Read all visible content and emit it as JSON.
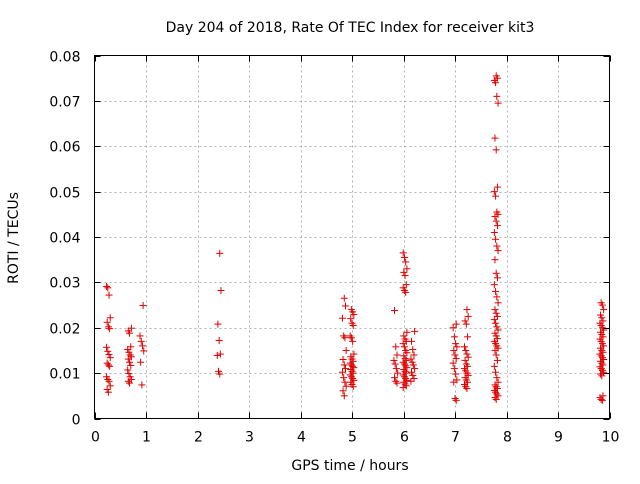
{
  "chart_data": {
    "type": "scatter",
    "title": "Day 204 of 2018, Rate Of TEC Index for receiver kit3",
    "xlabel": "GPS time / hours",
    "ylabel": "ROTI / TECUs",
    "xlim": [
      0,
      10
    ],
    "ylim": [
      0,
      0.08
    ],
    "x_ticks": [
      0,
      1,
      2,
      3,
      4,
      5,
      6,
      7,
      8,
      9,
      10
    ],
    "x_tick_labels": [
      "0",
      "1",
      "2",
      "3",
      "4",
      "5",
      "6",
      "7",
      "8",
      "9",
      "10"
    ],
    "y_ticks": [
      0,
      0.01,
      0.02,
      0.03,
      0.04,
      0.05,
      0.06,
      0.07,
      0.08
    ],
    "y_tick_labels": [
      "0",
      "0.01",
      "0.02",
      "0.03",
      "0.04",
      "0.05",
      "0.06",
      "0.07",
      "0.08"
    ],
    "grid": true,
    "marker": "+",
    "marker_color": "#e00000",
    "clusters": [
      {
        "x": 0.27,
        "values": [
          0.0291,
          0.0288,
          0.0272,
          0.0222,
          0.0212,
          0.0202,
          0.0198,
          0.0157,
          0.0148,
          0.0141,
          0.0134,
          0.0122,
          0.0118,
          0.0115,
          0.0092,
          0.0086,
          0.0082,
          0.0072,
          0.0064,
          0.0058
        ]
      },
      {
        "x": 0.68,
        "values": [
          0.0199,
          0.0193,
          0.0188,
          0.0158,
          0.0152,
          0.0146,
          0.014,
          0.0136,
          0.0131,
          0.0124,
          0.0117,
          0.0107,
          0.0099,
          0.0092,
          0.0086,
          0.0082,
          0.0078
        ]
      },
      {
        "x": 0.92,
        "values": [
          0.0249,
          0.0182,
          0.017,
          0.016,
          0.0149,
          0.0124,
          0.0074
        ]
      },
      {
        "x": 2.42,
        "values": [
          0.0364,
          0.0282,
          0.0208,
          0.0172,
          0.0142,
          0.0139,
          0.0104,
          0.0098
        ]
      },
      {
        "x": 4.85,
        "values": [
          0.0265,
          0.0248,
          0.0221,
          0.0182,
          0.0178,
          0.015,
          0.013,
          0.0118,
          0.011,
          0.0102,
          0.009,
          0.008,
          0.0071,
          0.0061,
          0.005
        ]
      },
      {
        "x": 5.0,
        "values": [
          0.024,
          0.0235,
          0.0229,
          0.022,
          0.021,
          0.0205,
          0.0182,
          0.0178,
          0.017,
          0.0142,
          0.0136,
          0.0131,
          0.0126,
          0.0122,
          0.0118,
          0.0115,
          0.0112,
          0.0108,
          0.0104,
          0.01,
          0.0096,
          0.0092,
          0.0088,
          0.0084,
          0.008,
          0.0075,
          0.007
        ]
      },
      {
        "x": 5.85,
        "values": [
          0.0238,
          0.0158,
          0.014,
          0.0128,
          0.012,
          0.011,
          0.01,
          0.009,
          0.0082,
          0.0078
        ]
      },
      {
        "x": 6.03,
        "values": [
          0.0365,
          0.0355,
          0.0345,
          0.033,
          0.0322,
          0.0315,
          0.0295,
          0.0288,
          0.0282,
          0.0278,
          0.019,
          0.0182,
          0.0175,
          0.017,
          0.0165,
          0.0158,
          0.015,
          0.0145,
          0.0138,
          0.0132,
          0.0128,
          0.0124,
          0.012,
          0.0116,
          0.0112,
          0.0108,
          0.0104,
          0.01,
          0.0096,
          0.0092,
          0.0088,
          0.0084,
          0.008,
          0.0076,
          0.0072,
          0.0068
        ]
      },
      {
        "x": 6.18,
        "values": [
          0.0192,
          0.017,
          0.0152,
          0.014,
          0.0131,
          0.0124,
          0.0118,
          0.011,
          0.0102,
          0.0095,
          0.0088,
          0.0082
        ]
      },
      {
        "x": 7.0,
        "values": [
          0.0208,
          0.02,
          0.018,
          0.0165,
          0.0158,
          0.015,
          0.014,
          0.0132,
          0.0122,
          0.011,
          0.0098,
          0.0085,
          0.008,
          0.0044,
          0.004
        ]
      },
      {
        "x": 7.22,
        "values": [
          0.024,
          0.0225,
          0.0215,
          0.0208,
          0.018,
          0.0158,
          0.015,
          0.0142,
          0.0135,
          0.0128,
          0.012,
          0.0115,
          0.011,
          0.0105,
          0.01,
          0.0095,
          0.009,
          0.0085,
          0.008,
          0.0075,
          0.007,
          0.0066
        ]
      },
      {
        "x": 7.8,
        "values": [
          0.0755,
          0.075,
          0.0745,
          0.074,
          0.071,
          0.0695,
          0.0618,
          0.0592,
          0.051,
          0.05,
          0.049,
          0.0455,
          0.045,
          0.0445,
          0.0435,
          0.0425,
          0.041,
          0.0395,
          0.038,
          0.037,
          0.035,
          0.032,
          0.031,
          0.0295,
          0.028,
          0.0268,
          0.0255,
          0.024,
          0.0232,
          0.0225,
          0.0218,
          0.021,
          0.0202,
          0.0195,
          0.0188,
          0.0182,
          0.0176,
          0.017,
          0.0165,
          0.016,
          0.0155,
          0.015,
          0.014,
          0.0128,
          0.0115,
          0.0102,
          0.009,
          0.008,
          0.0074,
          0.007,
          0.0066,
          0.0062,
          0.0058,
          0.0054,
          0.005,
          0.0046,
          0.0042
        ]
      },
      {
        "x": 9.85,
        "values": [
          0.0255,
          0.025,
          0.024,
          0.0228,
          0.0222,
          0.0215,
          0.021,
          0.0205,
          0.02,
          0.0195,
          0.019,
          0.0185,
          0.018,
          0.0175,
          0.017,
          0.0165,
          0.016,
          0.0155,
          0.015,
          0.0146,
          0.0142,
          0.0138,
          0.0134,
          0.013,
          0.0126,
          0.0122,
          0.0118,
          0.0114,
          0.011,
          0.0106,
          0.0102,
          0.0098,
          0.0094,
          0.005,
          0.0046,
          0.0042,
          0.004
        ]
      }
    ]
  }
}
